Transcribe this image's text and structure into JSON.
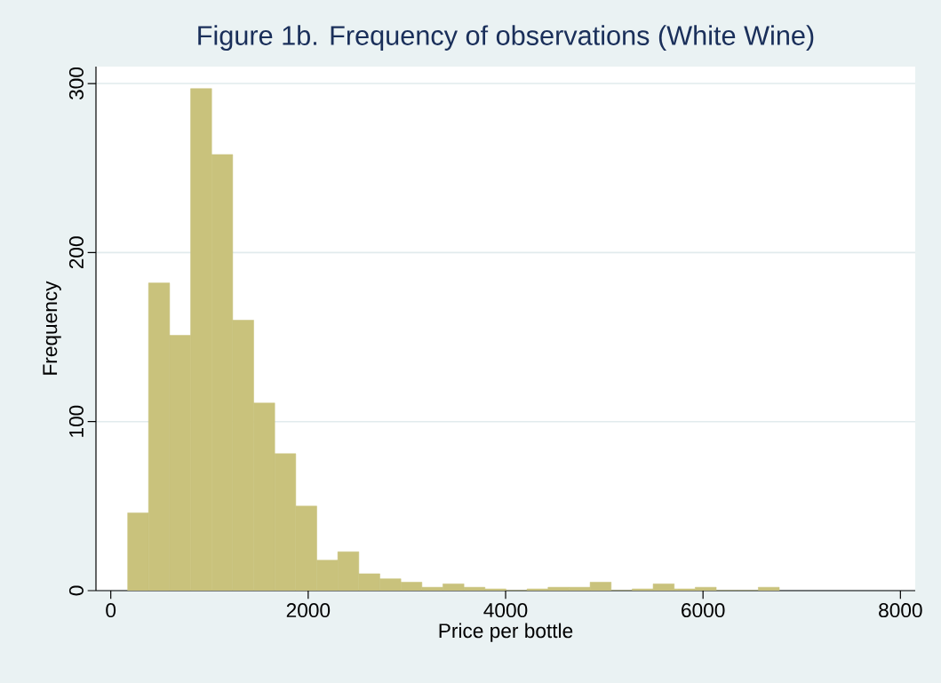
{
  "chart_data": {
    "type": "histogram",
    "title": "Figure 1b. Frequency of observations (White Wine)",
    "xlabel": "Price per bottle",
    "ylabel": "Frequency",
    "bins": [
      170,
      383,
      596,
      809,
      1022,
      1235,
      1448,
      1661,
      1874,
      2087,
      2300,
      2513,
      2726,
      2939,
      3152,
      3365,
      3578,
      3791,
      4004,
      4217,
      4430,
      4643,
      4856,
      5069,
      5282,
      5495,
      5708,
      5921,
      6134,
      6347,
      6560,
      6773
    ],
    "values": [
      46,
      182,
      151,
      297,
      258,
      160,
      111,
      81,
      50,
      18,
      23,
      10,
      7,
      5,
      2,
      4,
      2,
      1,
      0,
      1,
      2,
      2,
      5,
      0,
      1,
      4,
      1,
      2,
      0,
      0,
      2
    ],
    "color": "#c9c27c",
    "xlim": [
      -150,
      8150
    ],
    "ylim": [
      0,
      310
    ],
    "xticks": [
      0,
      2000,
      4000,
      6000,
      8000
    ],
    "yticks": [
      0,
      100,
      200,
      300
    ],
    "grid": "y"
  }
}
